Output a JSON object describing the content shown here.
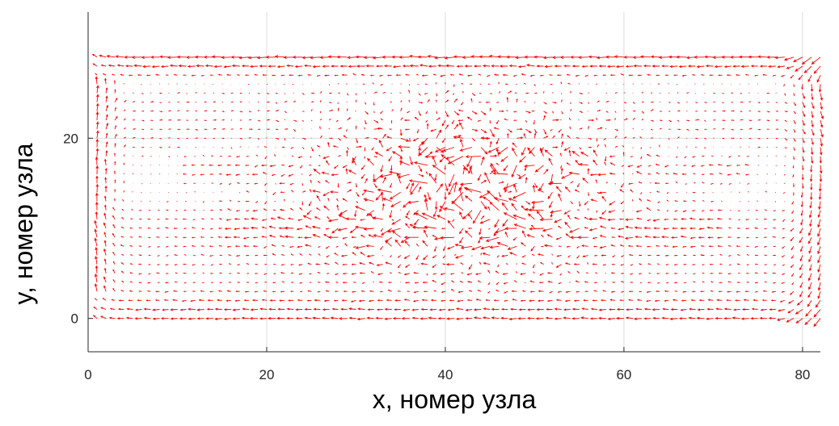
{
  "chart_data": {
    "type": "quiver",
    "title": "",
    "xlabel": "x, номер узла",
    "ylabel": "y, номер узла",
    "xlim": [
      0,
      82
    ],
    "ylim": [
      -3.7,
      34
    ],
    "xticks": [
      0,
      20,
      40,
      60,
      80
    ],
    "xtick_labels": [
      "0",
      "20",
      "40",
      "60",
      "80"
    ],
    "yticks": [
      0,
      20
    ],
    "ytick_labels": [
      "0",
      "20"
    ],
    "grid": true,
    "arrow_color": "#ff0000",
    "grid_color": "#dcdcdc",
    "axis_color": "#262626",
    "field": {
      "x_range": [
        1,
        82
      ],
      "y_range": [
        0,
        29
      ],
      "x_step": 1,
      "y_step": 1,
      "description": "velocity field vectors at grid nodes"
    }
  }
}
